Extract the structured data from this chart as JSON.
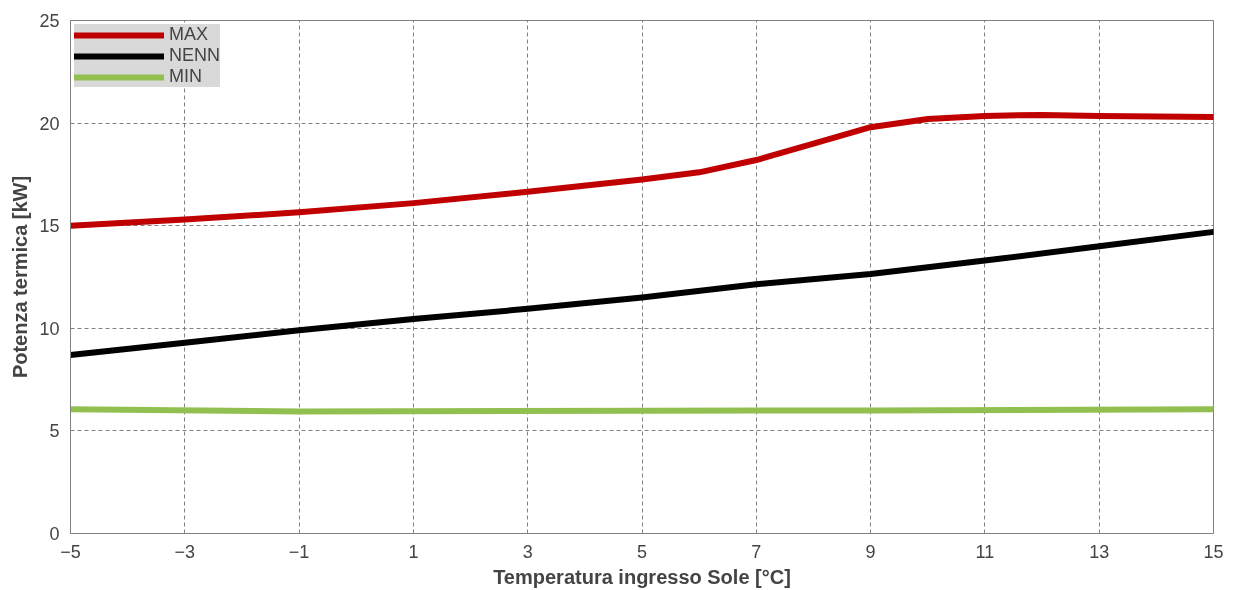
{
  "chart_data": {
    "type": "line",
    "xlabel": "Temperatura ingresso Sole [°C]",
    "ylabel": "Potenza termica [kW]",
    "xlim": [
      -5,
      15
    ],
    "xticks": [
      -5,
      -3,
      -1,
      1,
      3,
      5,
      7,
      9,
      11,
      13,
      15
    ],
    "ylim": [
      0,
      25
    ],
    "yticks": [
      0,
      5,
      10,
      15,
      20,
      25
    ],
    "grid": true,
    "legend": "top left",
    "marker": "none",
    "line_style": "solid",
    "series": [
      {
        "name": "MAX",
        "color": "#c00000",
        "x": [
          -5,
          -3,
          -1,
          1,
          3,
          5,
          6,
          7,
          8,
          9,
          10,
          11,
          12,
          13,
          15
        ],
        "values": [
          15.0,
          15.3,
          15.65,
          16.1,
          16.65,
          17.25,
          17.6,
          18.2,
          19.0,
          19.8,
          20.2,
          20.35,
          20.4,
          20.35,
          20.3
        ]
      },
      {
        "name": "NENN",
        "color": "#000000",
        "x": [
          -5,
          -3,
          -1,
          1,
          3,
          5,
          7,
          9,
          11,
          13,
          15
        ],
        "values": [
          8.7,
          9.3,
          9.9,
          10.45,
          10.95,
          11.5,
          12.15,
          12.65,
          13.3,
          14.0,
          14.7
        ]
      },
      {
        "name": "MIN",
        "color": "#92c050",
        "x": [
          -5,
          -1,
          5,
          9,
          15
        ],
        "values": [
          6.05,
          5.95,
          5.98,
          6.0,
          6.05
        ]
      }
    ]
  }
}
